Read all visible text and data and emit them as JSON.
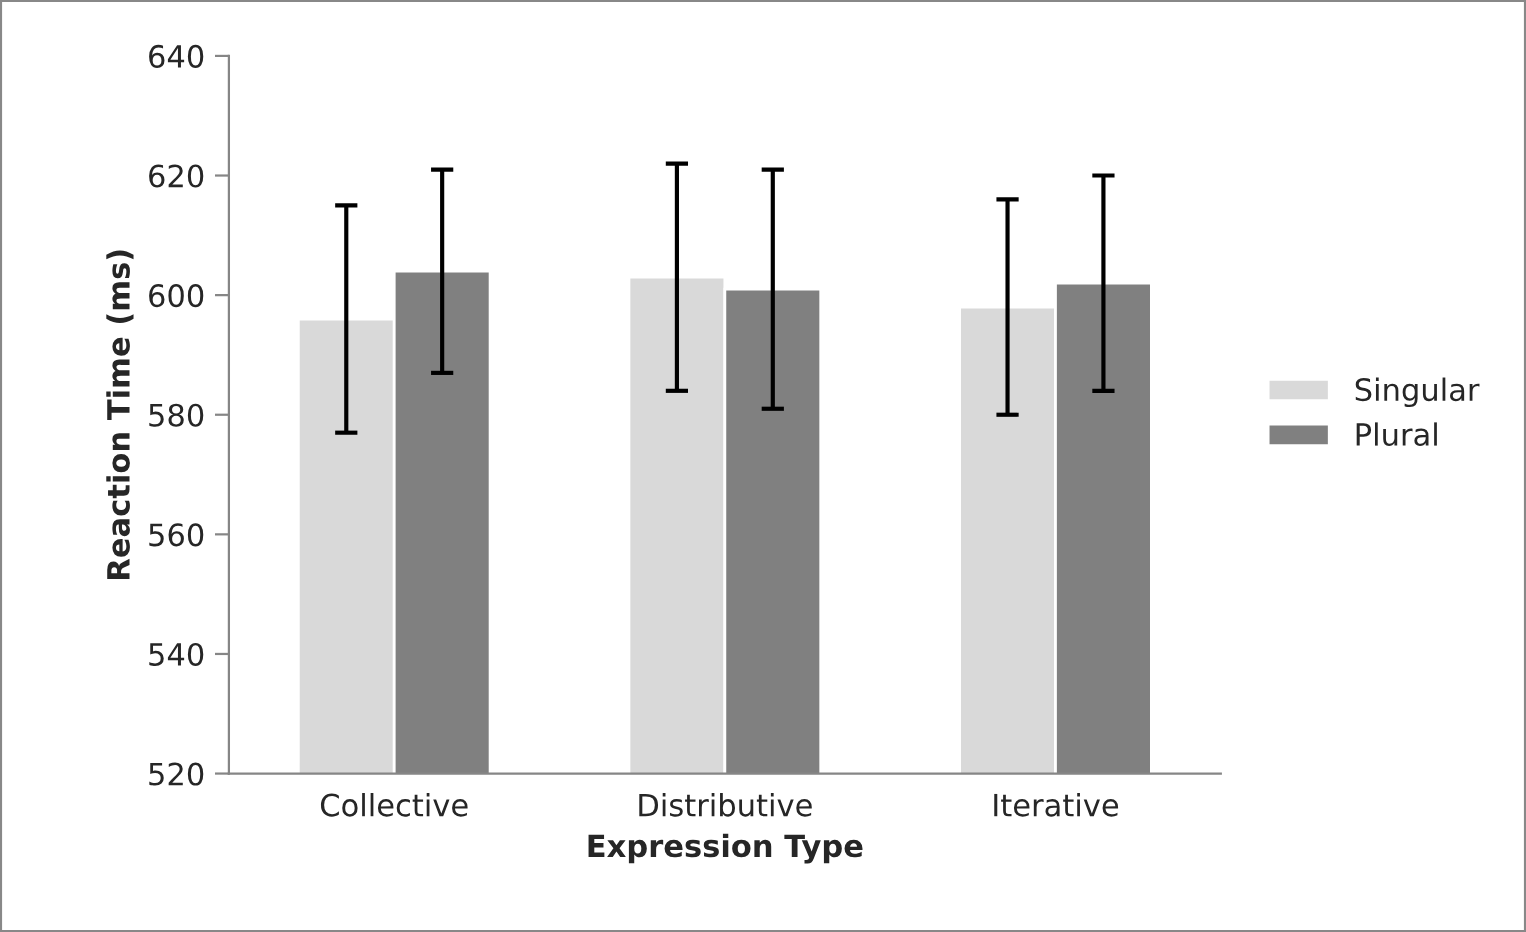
{
  "chart_data": {
    "type": "bar",
    "xlabel": "Expression Type",
    "ylabel": "Reaction Time (ms)",
    "categories": [
      "Collective",
      "Distributive",
      "Iterative"
    ],
    "series": [
      {
        "name": "Singular",
        "color": "#d9d9d9",
        "values": [
          596,
          603,
          598
        ],
        "errors": [
          19,
          19,
          18
        ]
      },
      {
        "name": "Plural",
        "color": "#808080",
        "values": [
          604,
          601,
          602
        ],
        "errors": [
          17,
          20,
          18
        ]
      }
    ],
    "ylim": [
      520,
      640
    ],
    "yticks": [
      520,
      540,
      560,
      580,
      600,
      620,
      640
    ],
    "grid": false,
    "legend": "right"
  }
}
